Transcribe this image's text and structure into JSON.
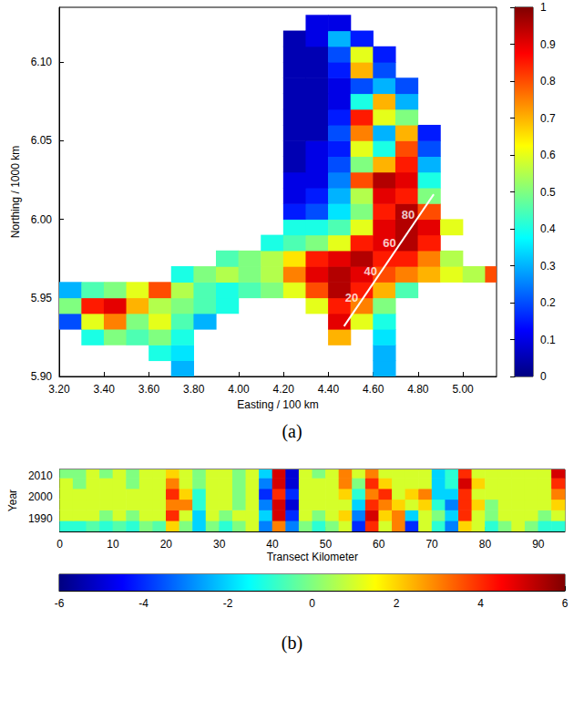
{
  "chart_data": [
    {
      "type": "heatmap",
      "caption": "(a)",
      "x_label": "Easting / 100 km",
      "y_label": "Northing / 1000 km",
      "xlim": [
        3.2,
        5.15
      ],
      "xticks": [
        {
          "value": 3.2,
          "label": "3.20"
        },
        {
          "value": 3.4,
          "label": "3.40"
        },
        {
          "value": 3.6,
          "label": "3.60"
        },
        {
          "value": 3.8,
          "label": "3.80"
        },
        {
          "value": 4.0,
          "label": "4.00"
        },
        {
          "value": 4.2,
          "label": "4.20"
        },
        {
          "value": 4.4,
          "label": "4.40"
        },
        {
          "value": 4.6,
          "label": "4.60"
        },
        {
          "value": 4.8,
          "label": "4.80"
        },
        {
          "value": 5.0,
          "label": "5.00"
        }
      ],
      "ylim": [
        5.9,
        6.135
      ],
      "yticks": [
        {
          "value": 5.9,
          "label": "5.90"
        },
        {
          "value": 5.95,
          "label": "5.95"
        },
        {
          "value": 6.0,
          "label": "6.00"
        },
        {
          "value": 6.05,
          "label": "6.05"
        },
        {
          "value": 6.1,
          "label": "6.10"
        }
      ],
      "cells": {
        "x_edges": [
          3.2,
          3.3,
          3.4,
          3.5,
          3.6,
          3.7,
          3.8,
          3.9,
          4.0,
          4.1,
          4.2,
          4.3,
          4.4,
          4.5,
          4.6,
          4.7,
          4.8,
          4.9,
          5.0,
          5.1,
          5.15
        ],
        "y_edges": [
          5.9,
          5.91,
          5.92,
          5.93,
          5.94,
          5.95,
          5.96,
          5.97,
          5.98,
          5.99,
          6.0,
          6.01,
          6.02,
          6.03,
          6.04,
          6.05,
          6.06,
          6.07,
          6.08,
          6.09,
          6.1,
          6.11,
          6.12,
          6.13
        ],
        "values": [
          [
            null,
            null,
            null,
            null,
            null,
            0.3,
            null,
            null,
            null,
            null,
            null,
            null,
            null,
            null,
            0.3,
            null,
            null,
            null,
            null,
            null
          ],
          [
            null,
            null,
            null,
            null,
            0.4,
            0.35,
            null,
            null,
            null,
            null,
            null,
            null,
            null,
            null,
            0.3,
            null,
            null,
            null,
            null,
            null
          ],
          [
            null,
            0.4,
            0.5,
            0.45,
            0.5,
            0.4,
            null,
            null,
            null,
            null,
            null,
            null,
            0.7,
            null,
            0.35,
            null,
            null,
            null,
            null,
            null
          ],
          [
            0.2,
            0.6,
            0.75,
            0.5,
            0.6,
            0.45,
            0.3,
            null,
            null,
            null,
            null,
            null,
            0.9,
            0.6,
            0.4,
            null,
            null,
            null,
            null,
            null
          ],
          [
            0.5,
            0.85,
            0.9,
            0.7,
            0.55,
            0.5,
            0.45,
            0.4,
            null,
            null,
            null,
            0.6,
            0.85,
            0.75,
            0.5,
            null,
            null,
            null,
            null,
            null
          ],
          [
            0.3,
            0.45,
            0.5,
            0.6,
            0.8,
            0.55,
            0.45,
            0.4,
            0.45,
            0.5,
            0.6,
            0.8,
            0.95,
            0.85,
            0.7,
            0.45,
            null,
            null,
            null,
            null
          ],
          [
            null,
            null,
            null,
            null,
            null,
            0.4,
            0.5,
            0.55,
            0.5,
            0.55,
            0.75,
            0.9,
            0.95,
            0.9,
            0.8,
            0.75,
            0.7,
            0.6,
            0.55,
            0.8
          ],
          [
            null,
            null,
            null,
            null,
            null,
            null,
            null,
            0.45,
            0.5,
            0.55,
            0.65,
            0.85,
            0.9,
            0.95,
            0.85,
            0.85,
            0.75,
            0.55,
            null,
            null
          ],
          [
            null,
            null,
            null,
            null,
            null,
            null,
            null,
            null,
            null,
            0.4,
            0.45,
            0.5,
            0.6,
            0.85,
            0.9,
            0.95,
            0.85,
            null,
            null,
            null
          ],
          [
            null,
            null,
            null,
            null,
            null,
            null,
            null,
            null,
            null,
            null,
            0.4,
            0.4,
            0.45,
            0.6,
            0.9,
            0.95,
            0.9,
            0.6,
            null,
            null
          ],
          [
            null,
            null,
            null,
            null,
            null,
            null,
            null,
            null,
            null,
            null,
            0.15,
            0.2,
            0.35,
            0.5,
            0.85,
            0.95,
            0.8,
            null,
            null,
            null
          ],
          [
            null,
            null,
            null,
            null,
            null,
            null,
            null,
            null,
            null,
            null,
            0.1,
            0.15,
            0.3,
            0.55,
            0.9,
            0.85,
            0.5,
            null,
            null,
            null
          ],
          [
            null,
            null,
            null,
            null,
            null,
            null,
            null,
            null,
            null,
            null,
            0.1,
            0.1,
            0.25,
            0.8,
            0.95,
            0.9,
            0.4,
            null,
            null,
            null
          ],
          [
            null,
            null,
            null,
            null,
            null,
            null,
            null,
            null,
            null,
            null,
            0.05,
            0.1,
            0.2,
            0.5,
            0.7,
            0.85,
            0.3,
            null,
            null,
            null
          ],
          [
            null,
            null,
            null,
            null,
            null,
            null,
            null,
            null,
            null,
            null,
            0.05,
            0.1,
            0.15,
            0.6,
            0.4,
            0.8,
            0.2,
            null,
            null,
            null
          ],
          [
            null,
            null,
            null,
            null,
            null,
            null,
            null,
            null,
            null,
            null,
            0.05,
            0.05,
            0.2,
            0.75,
            0.3,
            0.7,
            0.15,
            null,
            null,
            null
          ],
          [
            null,
            null,
            null,
            null,
            null,
            null,
            null,
            null,
            null,
            null,
            0.05,
            0.05,
            0.15,
            0.85,
            0.6,
            0.5,
            null,
            null,
            null,
            null
          ],
          [
            null,
            null,
            null,
            null,
            null,
            null,
            null,
            null,
            null,
            null,
            0.05,
            0.05,
            0.1,
            0.4,
            0.7,
            0.3,
            null,
            null,
            null,
            null
          ],
          [
            null,
            null,
            null,
            null,
            null,
            null,
            null,
            null,
            null,
            null,
            0.05,
            0.05,
            0.1,
            0.2,
            0.3,
            0.2,
            null,
            null,
            null,
            null
          ],
          [
            null,
            null,
            null,
            null,
            null,
            null,
            null,
            null,
            null,
            null,
            0.05,
            0.05,
            0.15,
            0.7,
            0.2,
            null,
            null,
            null,
            null,
            null
          ],
          [
            null,
            null,
            null,
            null,
            null,
            null,
            null,
            null,
            null,
            null,
            0.05,
            0.05,
            0.2,
            0.6,
            0.15,
            null,
            null,
            null,
            null,
            null
          ],
          [
            null,
            null,
            null,
            null,
            null,
            null,
            null,
            null,
            null,
            null,
            0.05,
            0.1,
            0.3,
            0.15,
            null,
            null,
            null,
            null,
            null,
            null
          ],
          [
            null,
            null,
            null,
            null,
            null,
            null,
            null,
            null,
            null,
            null,
            null,
            0.1,
            0.1,
            null,
            null,
            null,
            null,
            null,
            null,
            null
          ]
        ]
      },
      "colorbar": {
        "range": [
          0,
          1
        ],
        "ticks": [
          0,
          0.1,
          0.2,
          0.3,
          0.4,
          0.5,
          0.6,
          0.7,
          0.8,
          0.9,
          1
        ]
      },
      "transect": {
        "x": [
          4.47,
          4.87
        ],
        "y": [
          5.932,
          6.016
        ],
        "marks": [
          {
            "label": "20",
            "x": 4.554,
            "y": 5.95
          },
          {
            "label": "40",
            "x": 4.638,
            "y": 5.967
          },
          {
            "label": "60",
            "x": 4.722,
            "y": 5.985
          },
          {
            "label": "80",
            "x": 4.806,
            "y": 6.003
          }
        ]
      }
    },
    {
      "type": "heatmap",
      "caption": "(b)",
      "x_label": "Transect Kilometer",
      "y_label": "Year",
      "xlim": [
        0,
        95
      ],
      "xticks": [
        0,
        10,
        20,
        30,
        40,
        50,
        60,
        70,
        80,
        90
      ],
      "ylim": [
        1984,
        2013
      ],
      "yticks": [
        1990,
        2000,
        2010
      ],
      "cells": {
        "x_edges": [
          0,
          2.5,
          5,
          7.5,
          10,
          12.5,
          15,
          17.5,
          20,
          22.5,
          25,
          27.5,
          30,
          32.5,
          35,
          37.5,
          40,
          42.5,
          45,
          47.5,
          50,
          52.5,
          55,
          57.5,
          60,
          62.5,
          65,
          67.5,
          70,
          72.5,
          75,
          77.5,
          80,
          82.5,
          85,
          87.5,
          90,
          92.5,
          95
        ],
        "y_edges": [
          1984,
          1989,
          1994,
          1999,
          2004,
          2009,
          2013
        ],
        "values": [
          [
            -1,
            -1,
            -0.5,
            -1,
            -0.5,
            -1,
            0,
            -0.5,
            2,
            0,
            -2,
            0,
            -1,
            0,
            1,
            -3,
            3,
            -3,
            0,
            -1,
            0,
            1,
            -4,
            4,
            1,
            3,
            -4,
            1,
            -1,
            -3,
            2,
            1,
            -1,
            0,
            1,
            0,
            -1,
            -1
          ],
          [
            1,
            1,
            1,
            0,
            1,
            0,
            1,
            1,
            4,
            1,
            -2,
            1,
            0,
            1,
            1,
            -2,
            5,
            -4,
            1,
            0,
            1,
            2,
            -3,
            5,
            2,
            3,
            -2,
            1,
            0,
            -2,
            4,
            1,
            0,
            1,
            1,
            1,
            0,
            1
          ],
          [
            1,
            1,
            1,
            1,
            1,
            1,
            1,
            1,
            3,
            3,
            -1,
            1,
            1,
            0,
            1,
            -3,
            5,
            -5,
            1,
            1,
            1,
            1,
            -2,
            4,
            3,
            2,
            1,
            2,
            -1,
            -3,
            4,
            2,
            0,
            1,
            1,
            1,
            1,
            2
          ],
          [
            1,
            1,
            1,
            1,
            1,
            1,
            1,
            1,
            4,
            2,
            -1,
            1,
            1,
            0,
            1,
            -4,
            4,
            -4,
            1,
            1,
            1,
            2,
            -1,
            3,
            4,
            1,
            2,
            3,
            -2,
            -2,
            4,
            1,
            1,
            1,
            1,
            1,
            1,
            3
          ],
          [
            1,
            0,
            1,
            1,
            1,
            0,
            1,
            1,
            3,
            1,
            0,
            1,
            1,
            0,
            1,
            -3,
            5,
            -5,
            1,
            1,
            1,
            3,
            0,
            4,
            2,
            1,
            1,
            1,
            -2,
            -1,
            5,
            2,
            1,
            1,
            1,
            1,
            1,
            4
          ],
          [
            0,
            0,
            1,
            0,
            1,
            0,
            1,
            1,
            2,
            1,
            0,
            1,
            1,
            0,
            1,
            -2,
            5,
            -5,
            1,
            0,
            1,
            3,
            1,
            3,
            1,
            1,
            1,
            1,
            -2,
            -1,
            4,
            1,
            1,
            1,
            1,
            1,
            1,
            5
          ]
        ]
      },
      "colorbar": {
        "range": [
          -6,
          6
        ],
        "ticks": [
          -6,
          -4,
          -2,
          0,
          2,
          4,
          6
        ]
      }
    }
  ]
}
